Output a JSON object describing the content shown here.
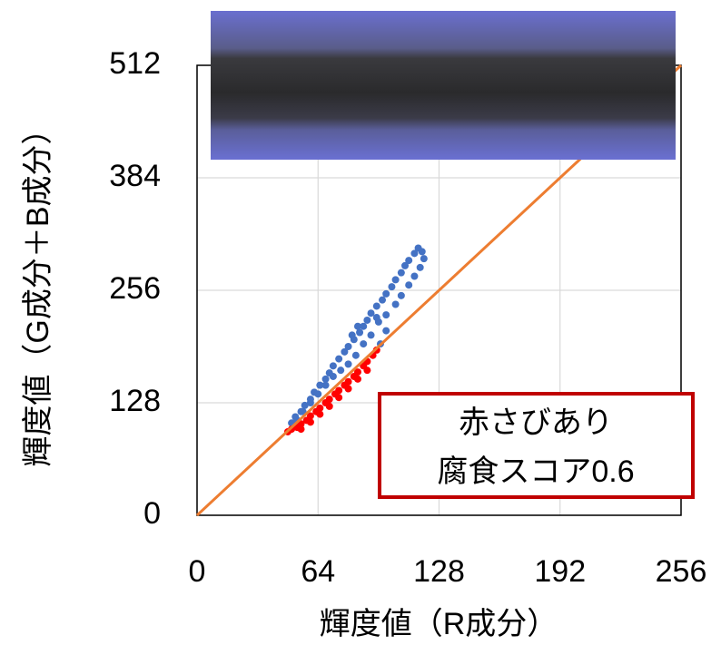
{
  "chart_data": {
    "type": "scatter",
    "x_label": "輝度値（R成分）",
    "y_label": "輝度値（G成分＋B成分）",
    "xlim": [
      0,
      256
    ],
    "ylim": [
      0,
      512
    ],
    "xticks": [
      0,
      64,
      128,
      192,
      256
    ],
    "yticks": [
      0,
      128,
      256,
      384,
      512
    ],
    "grid": true,
    "series": [
      {
        "color": "#4472c4",
        "x": [
          50,
          52,
          55,
          57,
          60,
          62,
          65,
          68,
          70,
          72,
          75,
          78,
          80,
          83,
          86,
          88,
          90,
          92,
          95,
          98,
          100,
          103,
          105,
          108,
          110,
          112,
          115,
          117,
          119,
          120,
          118,
          115,
          112,
          108,
          105,
          100,
          96,
          92,
          88,
          84,
          80,
          76,
          72,
          68,
          64,
          60,
          56,
          53,
          85,
          82,
          95,
          100,
          97
        ],
        "values": [
          105,
          112,
          118,
          125,
          132,
          140,
          148,
          155,
          162,
          170,
          178,
          186,
          192,
          200,
          208,
          215,
          222,
          230,
          238,
          245,
          252,
          260,
          268,
          276,
          284,
          290,
          298,
          304,
          300,
          292,
          282,
          272,
          262,
          250,
          240,
          228,
          220,
          205,
          195,
          182,
          172,
          165,
          158,
          148,
          138,
          128,
          118,
          108,
          215,
          205,
          225,
          210,
          195
        ]
      },
      {
        "color": "#ff0000",
        "x": [
          48,
          50,
          53,
          55,
          58,
          60,
          63,
          65,
          68,
          70,
          73,
          75,
          78,
          80,
          83,
          85,
          88,
          90,
          93,
          95,
          55,
          60,
          65,
          70,
          75,
          80,
          85,
          90
        ],
        "values": [
          95,
          98,
          100,
          104,
          108,
          113,
          118,
          122,
          128,
          132,
          138,
          142,
          148,
          152,
          158,
          163,
          170,
          175,
          182,
          188,
          98,
          106,
          115,
          124,
          134,
          144,
          155,
          165
        ]
      }
    ],
    "reference_line": {
      "color": "#ed7d31",
      "x": [
        0,
        256
      ],
      "y": [
        0,
        512
      ]
    },
    "annotation": [
      "赤さびあり",
      "腐食スコア0.6"
    ]
  }
}
